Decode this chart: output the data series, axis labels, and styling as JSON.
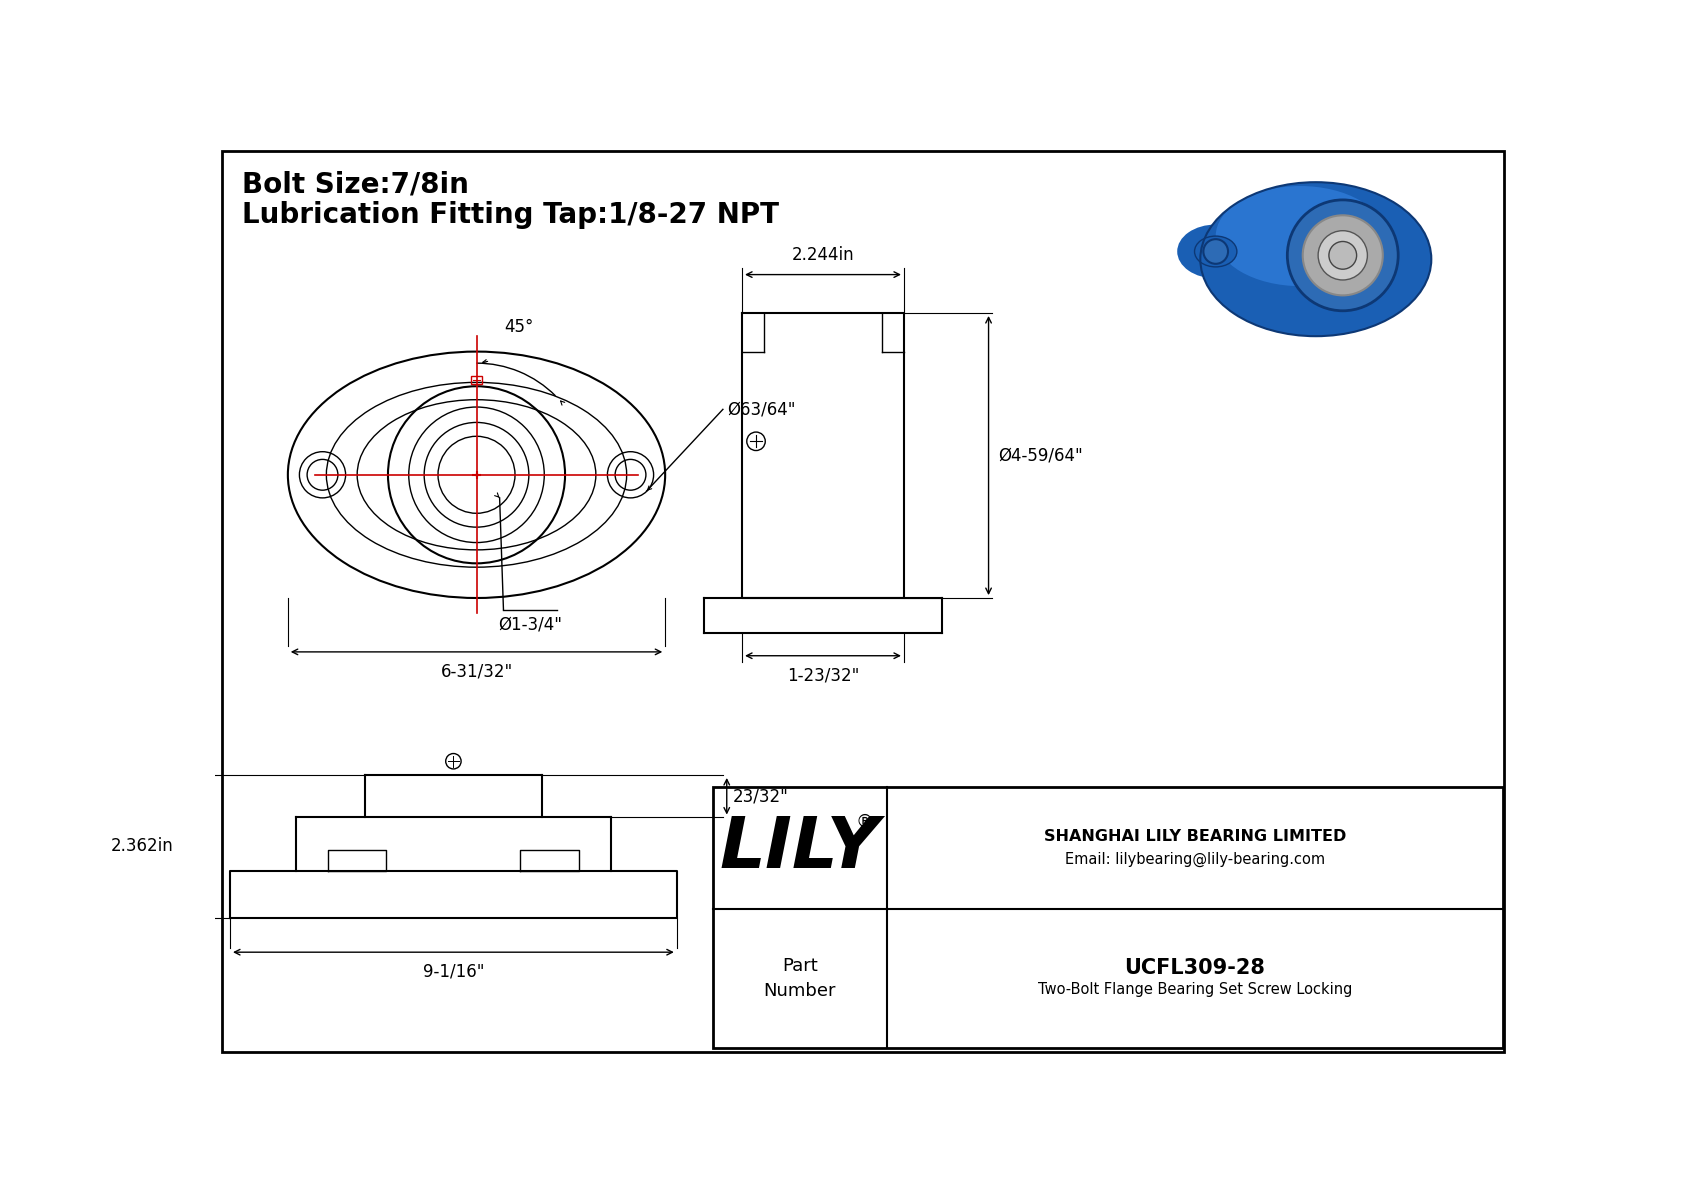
{
  "bg_color": "#ffffff",
  "line_color": "#000000",
  "red_color": "#cc0000",
  "title_line1": "Bolt Size:7/8in",
  "title_line2": "Lubrication Fitting Tap:1/8-27 NPT",
  "title_fontsize": 20,
  "dim_fontsize": 12,
  "company_name": "LILY",
  "company_reg": "®",
  "company_sub": "SHANGHAI LILY BEARING LIMITED",
  "company_email": "Email: lilybearing@lily-bearing.com",
  "part_number_label": "Part\nNumber",
  "part_number": "UCFL309-28",
  "part_desc": "Two-Bolt Flange Bearing Set Screw Locking",
  "dim_63_64": "Ø63/64\"",
  "dim_1_3_4": "Ø1-3/4\"",
  "dim_6_31_32": "6-31/32\"",
  "dim_45": "45°",
  "dim_2_244": "2.244in",
  "dim_4_59_64": "Ø4-59/64\"",
  "dim_1_23_32": "1-23/32\"",
  "dim_2_362": "2.362in",
  "dim_23_32": "23/32\"",
  "dim_9_1_16": "9-1/16\""
}
